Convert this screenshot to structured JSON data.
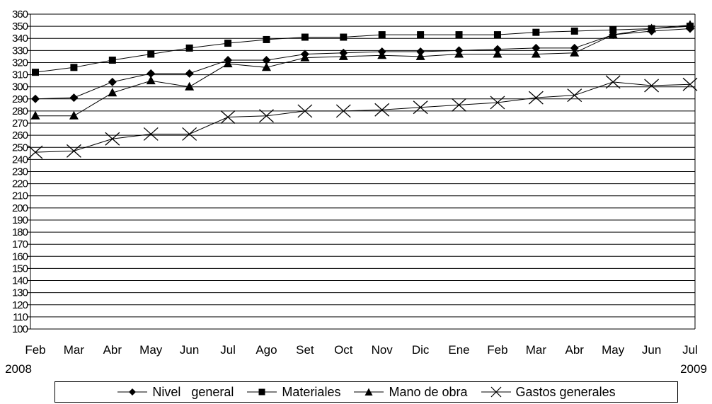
{
  "chart_data": {
    "type": "line",
    "categories": [
      "Feb",
      "Mar",
      "Abr",
      "May",
      "Jun",
      "Jul",
      "Ago",
      "Set",
      "Oct",
      "Nov",
      "Dic",
      "Ene",
      "Feb",
      "Mar",
      "Abr",
      "May",
      "Jun",
      "Jul"
    ],
    "year_labels": {
      "start": "2008",
      "end": "2009"
    },
    "ylim": [
      100,
      360
    ],
    "ystep": 10,
    "grid": true,
    "legend_position": "bottom",
    "series": [
      {
        "name": "Nivel   general",
        "marker": "diamond",
        "values": [
          290,
          291,
          304,
          311,
          311,
          322,
          322,
          327,
          328,
          329,
          329,
          330,
          331,
          332,
          332,
          343,
          346,
          348
        ]
      },
      {
        "name": "Materiales",
        "marker": "square",
        "values": [
          312,
          316,
          322,
          327,
          332,
          336,
          339,
          341,
          341,
          343,
          343,
          343,
          343,
          345,
          346,
          347,
          348,
          350
        ]
      },
      {
        "name": "Mano de obra",
        "marker": "triangle",
        "values": [
          276,
          276,
          295,
          305,
          300,
          319,
          316,
          324,
          325,
          326,
          325,
          327,
          327,
          327,
          328,
          343,
          348,
          351
        ]
      },
      {
        "name": "Gastos generales",
        "marker": "x",
        "values": [
          246,
          247,
          257,
          261,
          261,
          275,
          276,
          280,
          280,
          281,
          283,
          285,
          287,
          291,
          293,
          304,
          301,
          302
        ]
      }
    ]
  }
}
